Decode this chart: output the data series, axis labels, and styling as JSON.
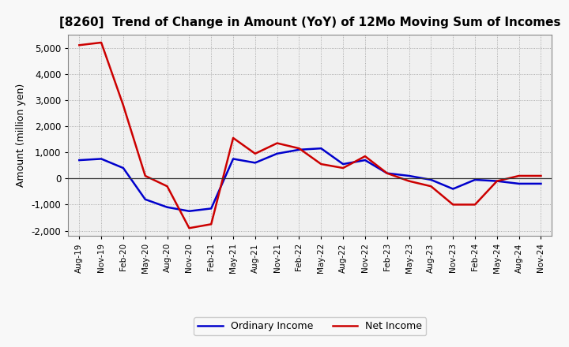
{
  "title": "[8260]  Trend of Change in Amount (YoY) of 12Mo Moving Sum of Incomes",
  "ylabel": "Amount (million yen)",
  "x_labels": [
    "Aug-19",
    "Nov-19",
    "Feb-20",
    "May-20",
    "Aug-20",
    "Nov-20",
    "Feb-21",
    "May-21",
    "Aug-21",
    "Nov-21",
    "Feb-22",
    "May-22",
    "Aug-22",
    "Nov-22",
    "Feb-23",
    "May-23",
    "Aug-23",
    "Nov-23",
    "Feb-24",
    "May-24",
    "Aug-24",
    "Nov-24"
  ],
  "ordinary_income": [
    700,
    750,
    400,
    -800,
    -1100,
    -1250,
    -1150,
    750,
    600,
    950,
    1100,
    1150,
    550,
    700,
    200,
    100,
    -50,
    -400,
    -50,
    -100,
    -200,
    -200
  ],
  "net_income": [
    5100,
    5200,
    2800,
    100,
    -300,
    -1900,
    -1750,
    1550,
    950,
    1350,
    1150,
    550,
    400,
    850,
    200,
    -100,
    -300,
    -1000,
    -1000,
    -100,
    100,
    100
  ],
  "ordinary_income_color": "#0000cc",
  "net_income_color": "#cc0000",
  "background_color": "#f8f8f8",
  "plot_bg_color": "#f0f0f0",
  "grid_color": "#999999",
  "ylim": [
    -2200,
    5500
  ],
  "yticks": [
    -2000,
    -1000,
    0,
    1000,
    2000,
    3000,
    4000,
    5000
  ],
  "legend_labels": [
    "Ordinary Income",
    "Net Income"
  ],
  "line_width": 1.8
}
